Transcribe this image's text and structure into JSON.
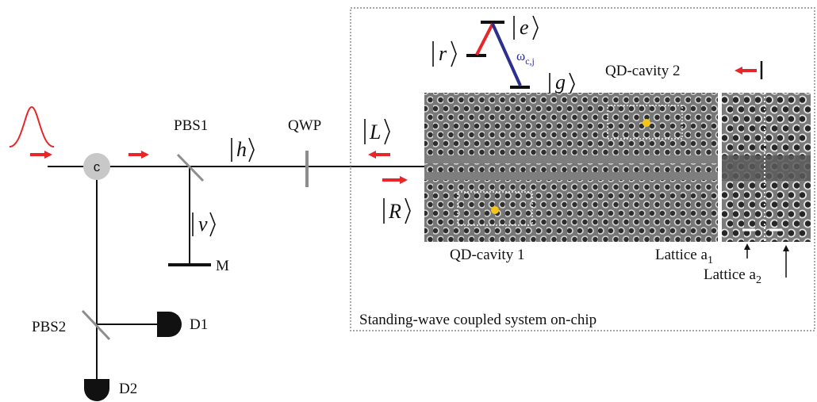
{
  "labels": {
    "circulator": "c",
    "pbs1": "PBS1",
    "pbs2": "PBS2",
    "qwp": "QWP",
    "mirror": "M",
    "d1": "D1",
    "d2": "D2",
    "ket_h": "h",
    "ket_v": "v",
    "ket_L": "L",
    "ket_R": "R",
    "ket_e": "e",
    "ket_r": "r",
    "ket_g": "g",
    "omega": "ω",
    "omega_sub": "c,j",
    "qd_cavity_1": "QD-cavity 1",
    "qd_cavity_2": "QD-cavity 2",
    "lattice_a1": "Lattice a",
    "lattice_a1_sub": "1",
    "lattice_a2": "Lattice a",
    "lattice_a2_sub": "2",
    "chip_caption": "Standing-wave coupled system on-chip"
  },
  "colors": {
    "arrow": "#e8262a",
    "transition_red": "#e8262a",
    "transition_blue": "#2b2f8f",
    "qd_dot": "#f5c518",
    "line": "#111111",
    "circulator_fill": "#c8c8c8",
    "chip_bg": "#6e6e6e"
  }
}
